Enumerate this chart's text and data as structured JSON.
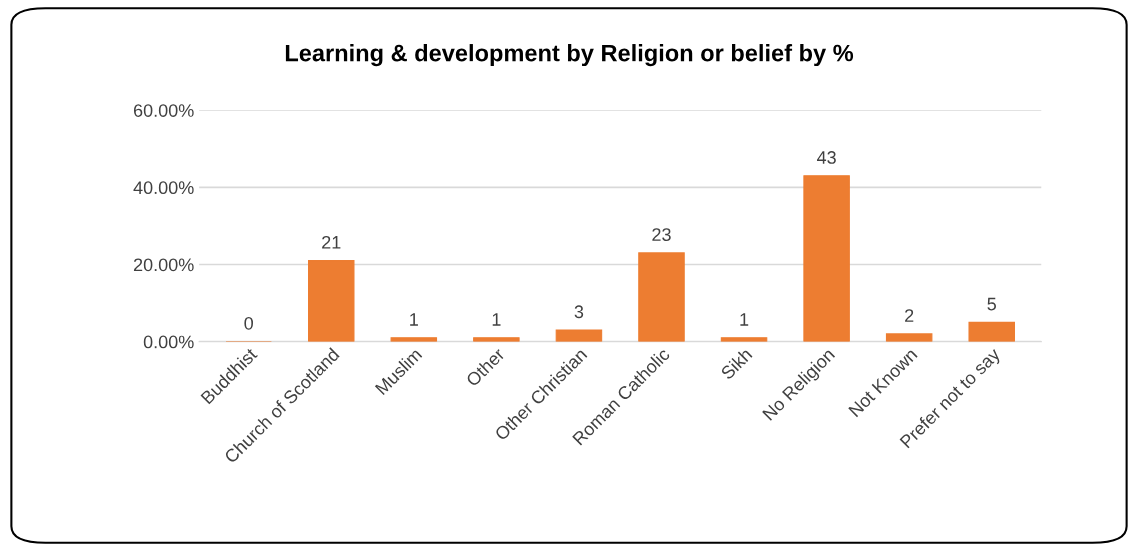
{
  "chart_data": {
    "type": "bar",
    "title": "Learning & development by Religion or belief by %",
    "categories": [
      "Buddhist",
      "Church of Scotland",
      "Muslim",
      "Other",
      "Other Christian",
      "Roman Catholic",
      "Sikh",
      "No Religion",
      "Not Known",
      "Prefer not to say"
    ],
    "values": [
      0,
      21,
      1,
      1,
      3,
      23,
      1,
      43,
      2,
      5
    ],
    "color": "#ed7d31",
    "ylim": [
      0,
      60
    ],
    "yticks": [
      {
        "value": 0,
        "label": "0.00%"
      },
      {
        "value": 20,
        "label": "20.00%"
      },
      {
        "value": 40,
        "label": "40.00%"
      },
      {
        "value": 60,
        "label": "60.00%"
      }
    ],
    "grid": "y",
    "data_labels": true
  }
}
